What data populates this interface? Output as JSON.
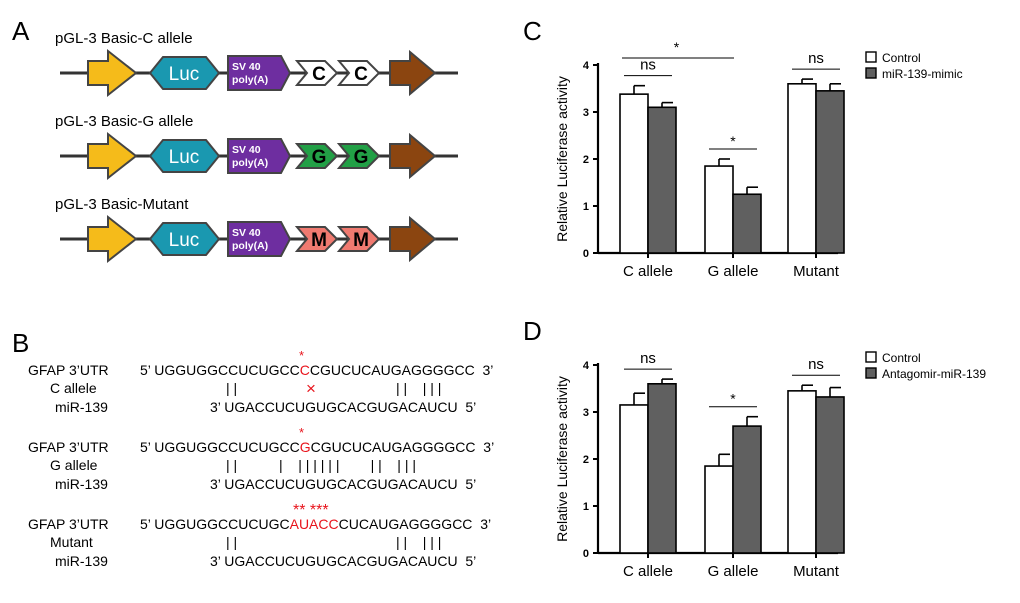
{
  "panels": {
    "A": {
      "letter": "A",
      "constructs": [
        {
          "title": "pGL-3 Basic-C allele",
          "luc": "Luc",
          "sv40_line1": "SV 40",
          "sv40_line2": "poly(A)",
          "allele": "C",
          "allele_color": "#ffffff",
          "allele_text_color": "#000000"
        },
        {
          "title": "pGL-3 Basic-G allele",
          "luc": "Luc",
          "sv40_line1": "SV 40",
          "sv40_line2": "poly(A)",
          "allele": "G",
          "allele_color": "#22a046",
          "allele_text_color": "#000000"
        },
        {
          "title": "pGL-3 Basic-Mutant",
          "luc": "Luc",
          "sv40_line1": "SV 40",
          "sv40_line2": "poly(A)",
          "allele": "M",
          "allele_color": "#f07a70",
          "allele_text_color": "#000000"
        }
      ],
      "colors": {
        "promoter": "#f5bb1a",
        "luc": "#1a98b0",
        "sv40": "#6e2ea0",
        "end": "#8b4510"
      }
    },
    "B": {
      "letter": "B",
      "alignments": [
        {
          "utr_label": "GFAP 3’UTR",
          "utr_prefix": "5’ UGGUGGCCUCUGCC",
          "utr_red": "C",
          "utr_suffix": "CGUCUCAUGAGGGGCC  3’",
          "stars": "*",
          "mid_label": "C allele",
          "pairing_left": "| |",
          "mismatch": "×",
          "pairing_right": "| |    | | |",
          "mir_label": "miR-139",
          "mir_seq": "3’ UGACCUCUGUGCACGUGACAUCU  5’"
        },
        {
          "utr_label": "GFAP 3’UTR",
          "utr_prefix": "5’ UGGUGGCCUCUGCC",
          "utr_red": "G",
          "utr_suffix": "CGUCUCAUGAGGGGCC  3’",
          "stars": "*",
          "mid_label": "G allele",
          "pairing_left": "| |",
          "mismatch": "",
          "pairing_right": "|    | | | | | |        | |    | | |",
          "mir_label": "miR-139",
          "mir_seq": "3’ UGACCUCUGUGCACGUGACAUCU  5’"
        },
        {
          "utr_label": "GFAP 3’UTR",
          "utr_prefix": "5’ UGGUGGCCUCUGC",
          "utr_red": "AUACC",
          "utr_suffix": "CUCAUGAGGGGCC  3’",
          "stars": "** ***",
          "mid_label": "Mutant",
          "pairing_left": "| |",
          "mismatch": "",
          "pairing_right": "| |    | | |",
          "mir_label": "miR-139",
          "mir_seq": "3’ UGACCUCUGUGCACGUGACAUCU  5’"
        }
      ],
      "red_color": "#e8141c"
    }
  },
  "chart_data": [
    {
      "panel": "C",
      "type": "bar",
      "ylabel": "Relative Luciferase activity",
      "ylim": [
        0,
        4
      ],
      "yticks": [
        "0",
        "1",
        "2",
        "3",
        "4"
      ],
      "categories": [
        "C allele",
        "G allele",
        "Mutant"
      ],
      "series": [
        {
          "name": "Control",
          "color": "#ffffff",
          "values": [
            3.38,
            1.85,
            3.6
          ],
          "errors": [
            0.18,
            0.15,
            0.1
          ]
        },
        {
          "name": "miR-139-mimic",
          "color": "#606060",
          "values": [
            3.1,
            1.25,
            3.45
          ],
          "errors": [
            0.1,
            0.15,
            0.15
          ]
        }
      ],
      "annotations": [
        {
          "text": "*",
          "from": "C allele:Control",
          "to": "G allele:Control"
        },
        {
          "text": "ns",
          "category": "C allele"
        },
        {
          "text": "*",
          "category": "G allele"
        },
        {
          "text": "ns",
          "category": "Mutant"
        }
      ],
      "legend_position": "top-right"
    },
    {
      "panel": "D",
      "type": "bar",
      "ylabel": "Relative Luciferase activity",
      "ylim": [
        0,
        4
      ],
      "yticks": [
        "0",
        "1",
        "2",
        "3",
        "4"
      ],
      "categories": [
        "C allele",
        "G allele",
        "Mutant"
      ],
      "series": [
        {
          "name": "Control",
          "color": "#ffffff",
          "values": [
            3.15,
            1.85,
            3.45
          ],
          "errors": [
            0.25,
            0.25,
            0.12
          ]
        },
        {
          "name": "Antagomir-miR-139",
          "color": "#606060",
          "values": [
            3.6,
            2.7,
            3.32
          ],
          "errors": [
            0.1,
            0.2,
            0.2
          ]
        }
      ],
      "annotations": [
        {
          "text": "ns",
          "category": "C allele"
        },
        {
          "text": "*",
          "category": "G allele"
        },
        {
          "text": "ns",
          "category": "Mutant"
        }
      ],
      "legend_position": "top-right"
    }
  ]
}
